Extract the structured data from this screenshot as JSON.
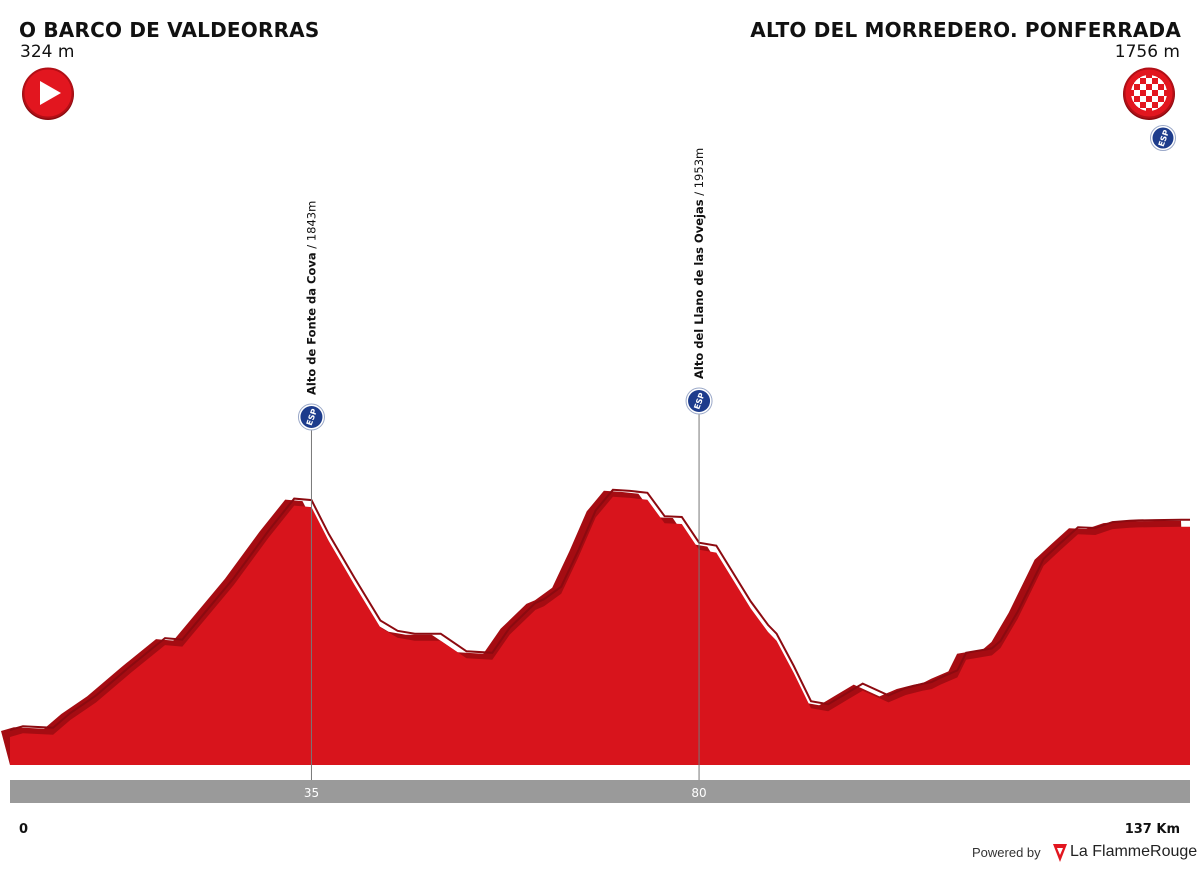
{
  "start": {
    "name": "O BARCO DE VALDEORRAS",
    "altitude_label": "324 m",
    "icon": "start-arrow-icon"
  },
  "finish": {
    "name": "ALTO DEL MORREDERO. PONFERRADA",
    "altitude_label": "1756 m",
    "icon": "finish-checkered-icon",
    "badge": "ESP"
  },
  "colors": {
    "profile": "#d8141c",
    "profile_shadow": "#a50c12",
    "km_band": "#9a9a9a",
    "esp_badge": "#1d3c8c"
  },
  "chart_data": {
    "type": "area",
    "x_unit": "km",
    "xlim": [
      0,
      137
    ],
    "ylim": [
      0,
      2700
    ],
    "x_axis_labels": {
      "start": "0",
      "end": "137 Km"
    },
    "series": [
      {
        "x": [
          0,
          1.5,
          5,
          7,
          10,
          14,
          18,
          20,
          23,
          26,
          30,
          33,
          35,
          37,
          40,
          43,
          45,
          47,
          50,
          53,
          56,
          58,
          61,
          62,
          64,
          66,
          68,
          70,
          72,
          74,
          76,
          78,
          80,
          82,
          86,
          88,
          89,
          91,
          93,
          95,
          97,
          99,
          102,
          104,
          106,
          107,
          108,
          110,
          111,
          114,
          115,
          117,
          119,
          120,
          122,
          124,
          126,
          128,
          130,
          131,
          133,
          135,
          136,
          137
        ],
        "y": [
          324,
          350,
          340,
          440,
          560,
          760,
          950,
          940,
          1150,
          1360,
          1680,
          1900,
          1890,
          1660,
          1360,
          1070,
          1000,
          980,
          980,
          860,
          850,
          1020,
          1190,
          1215,
          1300,
          1550,
          1820,
          1960,
          1953,
          1940,
          1780,
          1775,
          1600,
          1580,
          1200,
          1040,
          980,
          760,
          520,
          500,
          570,
          640,
          560,
          610,
          640,
          650,
          680,
          730,
          850,
          880,
          930,
          1130,
          1370,
          1490,
          1600,
          1705,
          1700,
          1740,
          1750,
          1752,
          1754,
          1755,
          1756,
          1756
        ]
      }
    ],
    "climbs": [
      {
        "km": 35,
        "name": "Alto de Fonte da Cova",
        "altitude": "1843m",
        "badge": "ESP",
        "label": "35"
      },
      {
        "km": 80,
        "name": "Alto del Llano de las Ovejas",
        "altitude": "1953m",
        "badge": "ESP",
        "label": "80"
      }
    ]
  },
  "footer": {
    "powered_label": "Powered by",
    "brand_name": "La FlammeRouge"
  }
}
